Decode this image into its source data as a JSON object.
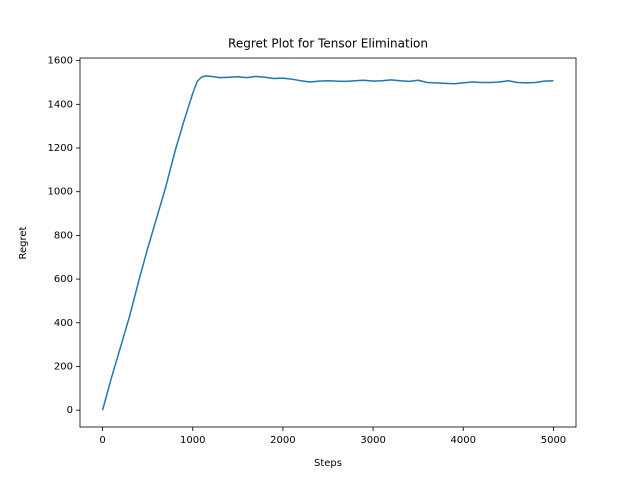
{
  "chart_data": {
    "type": "line",
    "title": "Regret Plot for Tensor Elimination",
    "x_label": "Steps",
    "y_label": "Regret",
    "x": [
      0,
      100,
      200,
      300,
      400,
      500,
      600,
      700,
      800,
      900,
      1000,
      1050,
      1100,
      1150,
      1200,
      1300,
      1400,
      1500,
      1600,
      1700,
      1800,
      1900,
      2000,
      2100,
      2200,
      2300,
      2400,
      2500,
      2600,
      2700,
      2800,
      2900,
      3000,
      3100,
      3200,
      3300,
      3400,
      3500,
      3600,
      3700,
      3800,
      3900,
      4000,
      4100,
      4200,
      4300,
      4400,
      4500,
      4600,
      4700,
      4800,
      4900,
      5000
    ],
    "series": [
      {
        "name": "Regret",
        "color": "#1f77b4",
        "values": [
          0,
          150,
          290,
          430,
          590,
          740,
          880,
          1020,
          1180,
          1320,
          1450,
          1505,
          1525,
          1530,
          1528,
          1522,
          1524,
          1526,
          1522,
          1528,
          1524,
          1518,
          1520,
          1515,
          1508,
          1502,
          1506,
          1508,
          1506,
          1505,
          1508,
          1510,
          1506,
          1508,
          1512,
          1508,
          1505,
          1510,
          1500,
          1498,
          1496,
          1494,
          1498,
          1502,
          1500,
          1500,
          1502,
          1508,
          1500,
          1498,
          1500,
          1506,
          1508
        ]
      }
    ],
    "xlim": [
      -250,
      5250
    ],
    "xticks": [
      0,
      1000,
      2000,
      3000,
      4000,
      5000
    ],
    "ylim": [
      -77,
      1612
    ],
    "yticks": [
      0,
      200,
      400,
      600,
      800,
      1000,
      1200,
      1400,
      1600
    ],
    "grid": false
  }
}
